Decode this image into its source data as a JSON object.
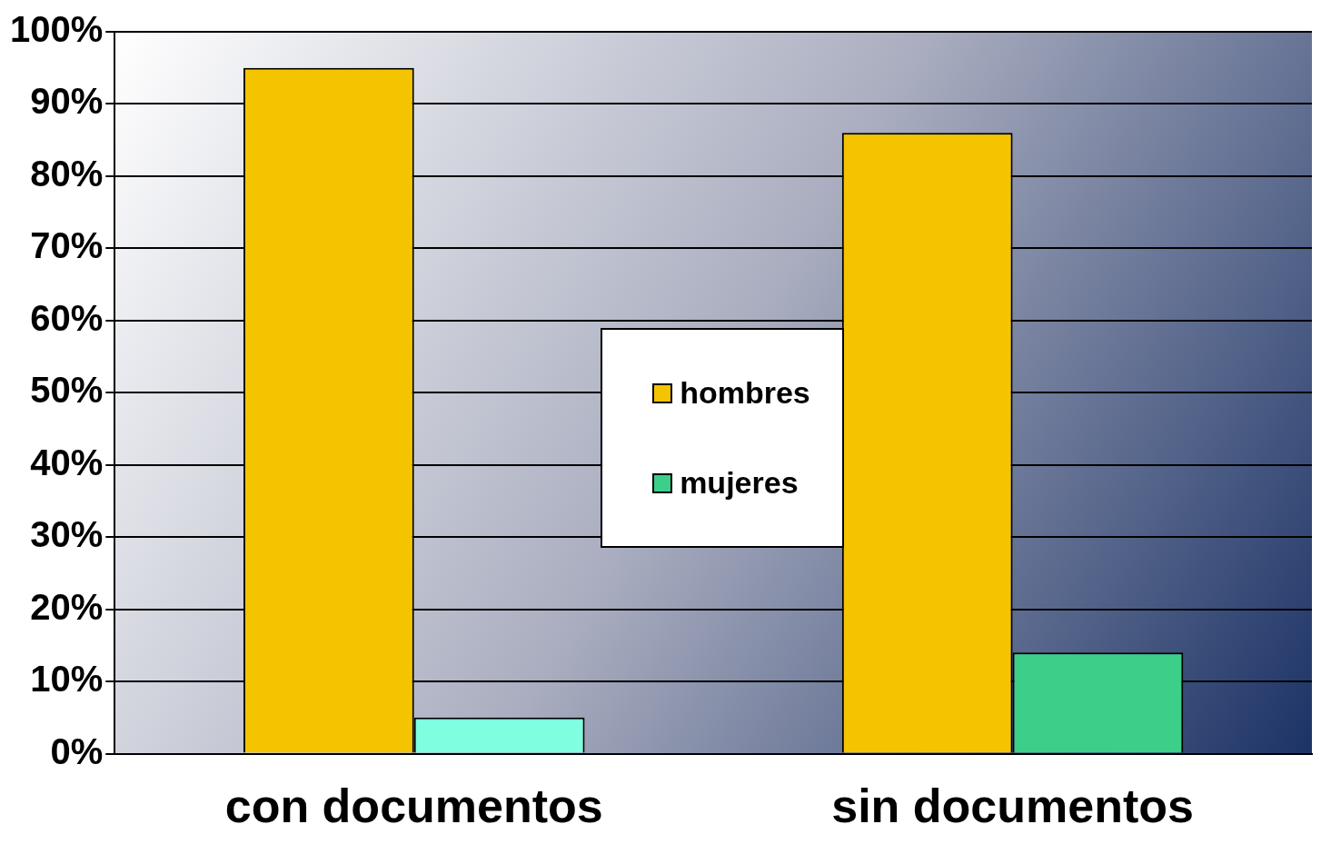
{
  "chart_data": {
    "type": "bar",
    "categories": [
      "con documentos",
      "sin documentos"
    ],
    "series": [
      {
        "name": "hombres",
        "color": "#f5c400",
        "values": [
          95,
          86
        ]
      },
      {
        "name": "mujeres",
        "color": "#3ccf8a",
        "colors": [
          "#7fffe0",
          "#3ccf8a"
        ],
        "values": [
          5,
          14
        ]
      }
    ],
    "ylim": [
      0,
      100
    ],
    "yticks": [
      {
        "value": 0,
        "label": "0%"
      },
      {
        "value": 10,
        "label": "10%"
      },
      {
        "value": 20,
        "label": "20%"
      },
      {
        "value": 30,
        "label": "30%"
      },
      {
        "value": 40,
        "label": "40%"
      },
      {
        "value": 50,
        "label": "50%"
      },
      {
        "value": 60,
        "label": "60%"
      },
      {
        "value": 70,
        "label": "70%"
      },
      {
        "value": 80,
        "label": "80%"
      },
      {
        "value": 90,
        "label": "90%"
      },
      {
        "value": 100,
        "label": "100%"
      }
    ],
    "grid": "y",
    "legend": "center"
  }
}
